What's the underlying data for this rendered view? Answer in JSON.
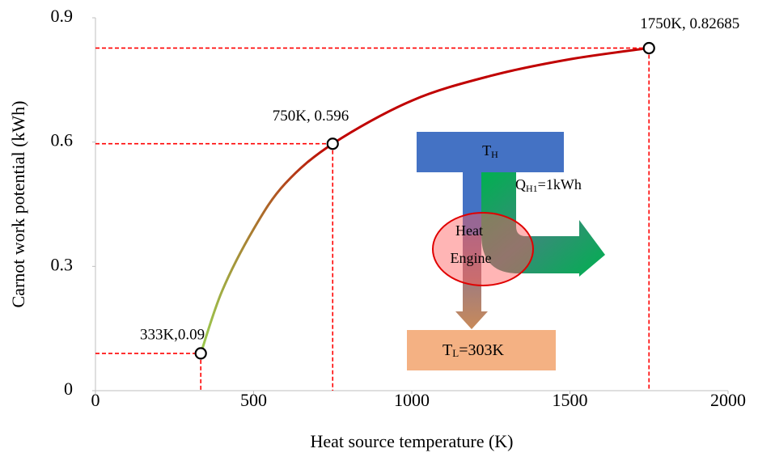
{
  "chart_data": {
    "type": "line",
    "x_label": "Heat source temperature (K)",
    "y_label": "Carnot work potential (kWh)",
    "x": [
      333,
      400,
      500,
      600,
      750,
      1000,
      1250,
      1500,
      1750
    ],
    "series": [
      {
        "values": [
          0.09,
          0.24,
          0.39,
          0.5,
          0.596,
          0.7,
          0.76,
          0.8,
          0.827
        ],
        "color": "#c00000",
        "gradient_start": "#9bcb50"
      }
    ],
    "highlights": {
      "x": [
        333,
        750,
        1750
      ],
      "values": [
        0.09,
        0.596,
        0.82685
      ],
      "value_labels": [
        "333K,0.09",
        "750K, 0.596",
        "1750K, 0.82685"
      ],
      "color": "#ff0000"
    },
    "xlim": [
      0,
      2000
    ],
    "xticks": [
      0,
      500,
      1000,
      1500,
      2000
    ],
    "ylim": [
      0,
      0.9
    ],
    "yticks": [
      0,
      0.3,
      0.6,
      0.9
    ]
  },
  "diagram": {
    "hot": {
      "main": "T",
      "sub": "H"
    },
    "heat_in": {
      "main": "Q",
      "sub": "H1",
      "rest": "=1kWh"
    },
    "engine": [
      "Heat",
      "Engine"
    ],
    "cold": {
      "main": "T",
      "sub": "L",
      "rest": "=303K"
    }
  }
}
